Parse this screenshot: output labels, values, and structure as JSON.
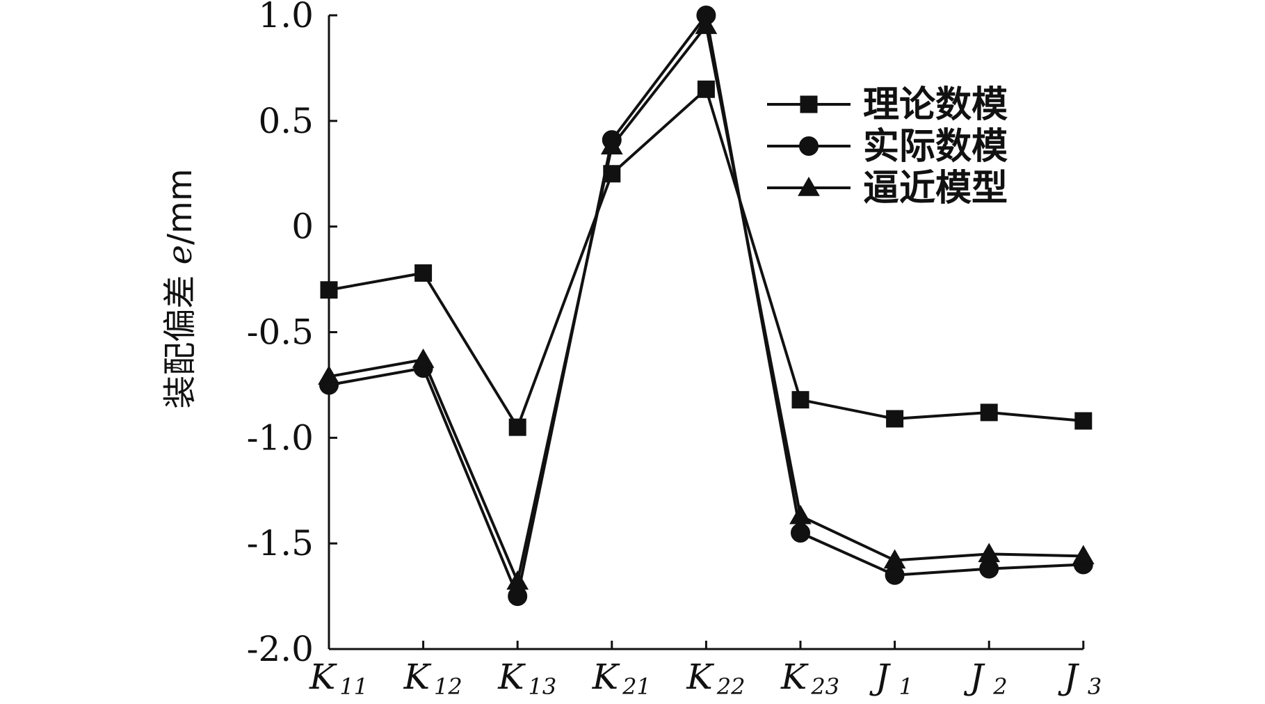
{
  "chart_data": {
    "type": "line",
    "categories": [
      {
        "main": "K",
        "sub": "11"
      },
      {
        "main": "K",
        "sub": "12"
      },
      {
        "main": "K",
        "sub": "13"
      },
      {
        "main": "K",
        "sub": "21"
      },
      {
        "main": "K",
        "sub": "22"
      },
      {
        "main": "K",
        "sub": "23"
      },
      {
        "main": "J",
        "sub": "1"
      },
      {
        "main": "J",
        "sub": "2"
      },
      {
        "main": "J",
        "sub": "3"
      }
    ],
    "series": [
      {
        "name": "理论数模",
        "marker": "square",
        "values": [
          -0.3,
          -0.22,
          -0.95,
          0.25,
          0.65,
          -0.82,
          -0.91,
          -0.88,
          -0.92
        ]
      },
      {
        "name": "实际数模",
        "marker": "circle",
        "values": [
          -0.75,
          -0.67,
          -1.75,
          0.41,
          1.0,
          -1.45,
          -1.65,
          -1.62,
          -1.6
        ]
      },
      {
        "name": "逼近模型",
        "marker": "triangle",
        "values": [
          -0.71,
          -0.63,
          -1.68,
          0.38,
          0.95,
          -1.37,
          -1.58,
          -1.55,
          -1.56
        ]
      }
    ],
    "ylabel": {
      "text": "装配偏差 ",
      "variable": "e",
      "unit": "/mm"
    },
    "yticks": [
      "-2.0",
      "-1.5",
      "-1.0",
      "-0.5",
      "0",
      "0.5",
      "1.0"
    ],
    "ylim": [
      -2.0,
      1.0
    ],
    "grid": false,
    "legend_position": "top-right",
    "color": "#111111"
  }
}
